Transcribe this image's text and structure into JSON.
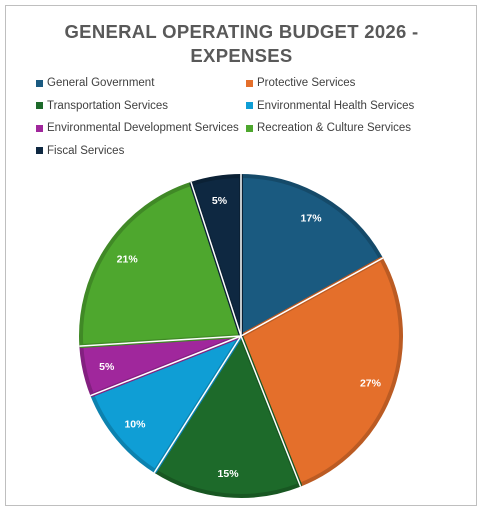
{
  "chart_data": {
    "type": "pie",
    "title": "GENERAL OPERATING BUDGET 2026 - EXPENSES",
    "title_line1": "GENERAL OPERATING BUDGET 2026 -",
    "title_line2": "EXPENSES",
    "legend_position": "top",
    "categories": [
      "General Government",
      "Protective Services",
      "Transportation Services",
      "Environmental Health Services",
      "Environmental Development Services",
      "Recreation & Culture Services",
      "Fiscal Services"
    ],
    "values": [
      17,
      27,
      15,
      10,
      5,
      21,
      5
    ],
    "data_labels": [
      "17%",
      "27%",
      "15%",
      "10%",
      "5%",
      "21%",
      "5%"
    ],
    "colors": [
      "#1a5a80",
      "#e46f2b",
      "#1d6a2a",
      "#0f9ed5",
      "#a0279c",
      "#4ea72e",
      "#0e2841"
    ]
  }
}
